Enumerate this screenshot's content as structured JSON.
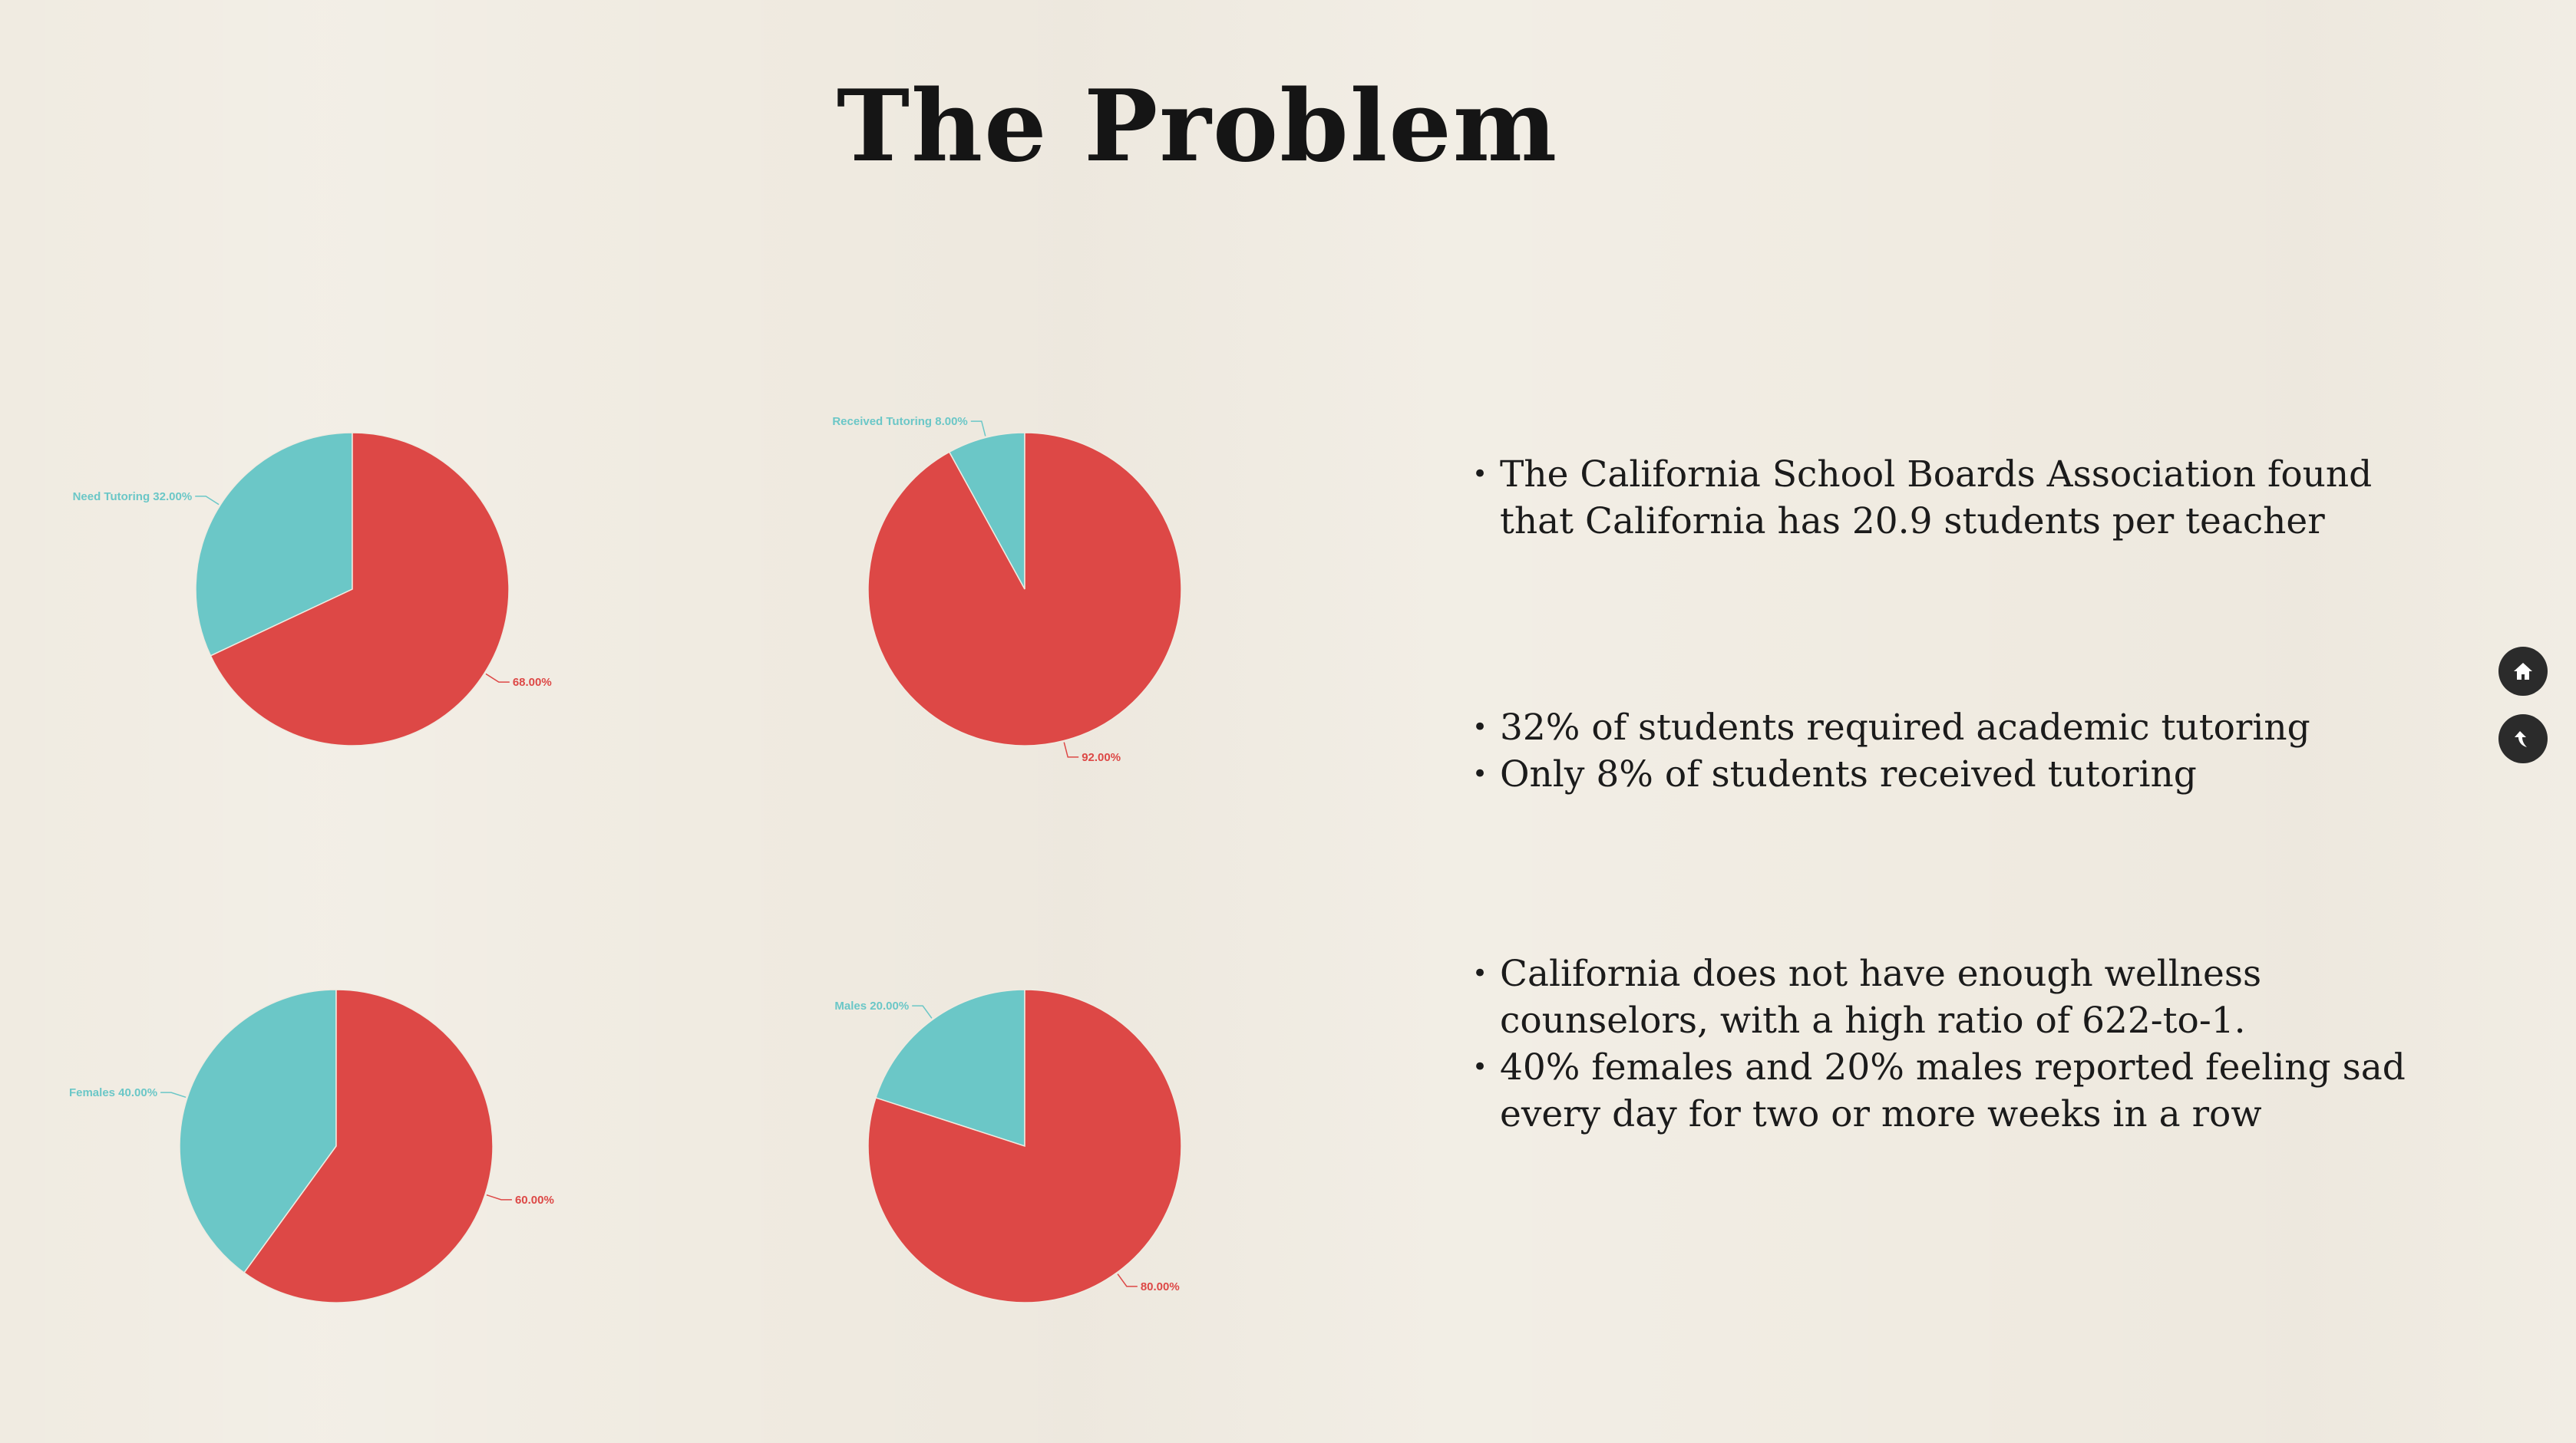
{
  "slide": {
    "title": "The Problem"
  },
  "bullets": {
    "block1": [
      "The California School Boards Association found that California has 20.9 students per teacher"
    ],
    "block2": [
      "32% of students required academic tutoring",
      "Only 8% of students received tutoring"
    ],
    "block3": [
      "California does not have enough wellness counselors, with a high ratio of 622-to-1.",
      "40% females and 20% males reported feeling sad every day for two or more weeks in a row"
    ]
  },
  "nav": {
    "home_icon": "home-icon",
    "back_icon": "back-arrow-icon"
  },
  "colors": {
    "teal": "#6bc7c7",
    "red": "#dd4846",
    "background": "#f0ebe1"
  },
  "chart_data": [
    {
      "type": "pie",
      "slices": [
        {
          "label": "Need Tutoring",
          "value": 32.0,
          "label_text": "Need Tutoring 32.00%",
          "color": "#6bc7c7"
        },
        {
          "label": "",
          "value": 68.0,
          "label_text": "68.00%",
          "color": "#dd4846"
        }
      ]
    },
    {
      "type": "pie",
      "slices": [
        {
          "label": "Received Tutoring",
          "value": 8.0,
          "label_text": "Received Tutoring 8.00%",
          "color": "#6bc7c7"
        },
        {
          "label": "",
          "value": 92.0,
          "label_text": "92.00%",
          "color": "#dd4846"
        }
      ]
    },
    {
      "type": "pie",
      "slices": [
        {
          "label": "Females",
          "value": 40.0,
          "label_text": "Females 40.00%",
          "color": "#6bc7c7"
        },
        {
          "label": "",
          "value": 60.0,
          "label_text": "60.00%",
          "color": "#dd4846"
        }
      ]
    },
    {
      "type": "pie",
      "slices": [
        {
          "label": "Males",
          "value": 20.0,
          "label_text": "Males 20.00%",
          "color": "#6bc7c7"
        },
        {
          "label": "",
          "value": 80.0,
          "label_text": "80.00%",
          "color": "#dd4846"
        }
      ]
    }
  ]
}
